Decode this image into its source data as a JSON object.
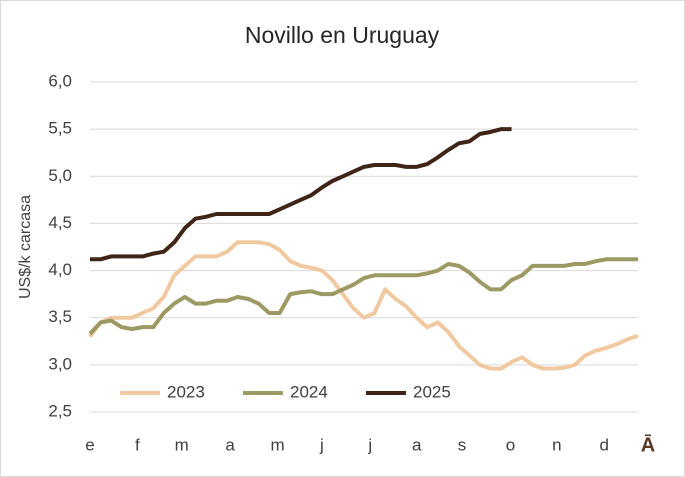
{
  "chart_data": {
    "type": "line",
    "title": "Novillo en Uruguay",
    "y_label": "US$/k carcasa",
    "corner_mark": "Ā",
    "x": [
      0,
      1,
      2,
      3,
      4,
      5,
      6,
      7,
      8,
      9,
      10,
      11,
      12,
      13,
      14,
      15,
      16,
      17,
      18,
      19,
      20,
      21,
      22,
      23,
      24,
      25,
      26,
      27,
      28,
      29,
      30,
      31,
      32,
      33,
      34,
      35,
      36,
      37,
      38,
      39,
      40,
      41,
      42,
      43,
      44,
      45,
      46,
      47,
      48,
      49,
      50,
      51,
      52
    ],
    "xlim": [
      0,
      52
    ],
    "xticks": [
      {
        "value": 0,
        "label": "e"
      },
      {
        "value": 4.5,
        "label": "f"
      },
      {
        "value": 8.7,
        "label": "m"
      },
      {
        "value": 13.3,
        "label": "a"
      },
      {
        "value": 17.8,
        "label": "m"
      },
      {
        "value": 22,
        "label": "j"
      },
      {
        "value": 26.6,
        "label": "j"
      },
      {
        "value": 31,
        "label": "a"
      },
      {
        "value": 35.3,
        "label": "s"
      },
      {
        "value": 39.9,
        "label": "o"
      },
      {
        "value": 44.3,
        "label": "n"
      },
      {
        "value": 48.8,
        "label": "d"
      }
    ],
    "ylim": [
      2.5,
      6.0
    ],
    "yticks": [
      {
        "value": 2.5,
        "label": "2,5"
      },
      {
        "value": 3.0,
        "label": "3,0"
      },
      {
        "value": 3.5,
        "label": "3,5"
      },
      {
        "value": 4.0,
        "label": "4,0"
      },
      {
        "value": 4.5,
        "label": "4,5"
      },
      {
        "value": 5.0,
        "label": "5,0"
      },
      {
        "value": 5.5,
        "label": "5,5"
      },
      {
        "value": 6.0,
        "label": "6,0"
      }
    ],
    "grid": true,
    "legend": "bottom-left",
    "series": [
      {
        "name": "2023",
        "color": "#f0c9a0",
        "values": [
          3.3,
          3.45,
          3.5,
          3.5,
          3.5,
          3.55,
          3.6,
          3.72,
          3.95,
          4.05,
          4.15,
          4.15,
          4.15,
          4.2,
          4.3,
          4.3,
          4.3,
          4.28,
          4.22,
          4.1,
          4.05,
          4.03,
          4.0,
          3.9,
          3.75,
          3.6,
          3.5,
          3.55,
          3.8,
          3.7,
          3.62,
          3.5,
          3.4,
          3.45,
          3.35,
          3.2,
          3.1,
          3.0,
          2.96,
          2.96,
          3.03,
          3.08,
          3.0,
          2.96,
          2.96,
          2.97,
          3.0,
          3.1,
          3.15,
          3.18,
          3.22,
          3.27,
          3.31
        ]
      },
      {
        "name": "2024",
        "color": "#9c9a62",
        "values": [
          3.33,
          3.45,
          3.47,
          3.4,
          3.38,
          3.4,
          3.4,
          3.55,
          3.65,
          3.72,
          3.65,
          3.65,
          3.68,
          3.68,
          3.72,
          3.7,
          3.65,
          3.55,
          3.55,
          3.75,
          3.77,
          3.78,
          3.75,
          3.75,
          3.8,
          3.85,
          3.92,
          3.95,
          3.95,
          3.95,
          3.95,
          3.95,
          3.97,
          4.0,
          4.07,
          4.05,
          3.98,
          3.88,
          3.8,
          3.8,
          3.9,
          3.95,
          4.05,
          4.05,
          4.05,
          4.05,
          4.07,
          4.07,
          4.1,
          4.12,
          4.12,
          4.12,
          4.12
        ]
      },
      {
        "name": "2025",
        "color": "#3f2418",
        "values": [
          4.12,
          4.12,
          4.15,
          4.15,
          4.15,
          4.15,
          4.18,
          4.2,
          4.3,
          4.45,
          4.55,
          4.57,
          4.6,
          4.6,
          4.6,
          4.6,
          4.6,
          4.6,
          4.65,
          4.7,
          4.75,
          4.8,
          4.88,
          4.95,
          5.0,
          5.05,
          5.1,
          5.12,
          5.12,
          5.12,
          5.1,
          5.1,
          5.13,
          5.2,
          5.28,
          5.35,
          5.37,
          5.45,
          5.47,
          5.5,
          5.5,
          null,
          null,
          null,
          null,
          null,
          null,
          null,
          null,
          null,
          null,
          null,
          null
        ]
      }
    ]
  }
}
